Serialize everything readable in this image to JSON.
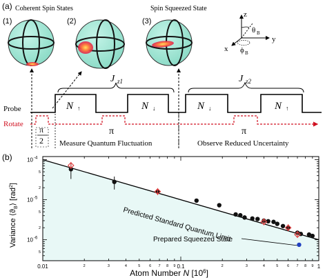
{
  "panel_a": {
    "label": "(a)",
    "sphere_labels": [
      "(1)",
      "(2)",
      "(3)"
    ],
    "coherent_title": "Coherent Spin States",
    "squeezed_title": "Spin Squeezed State",
    "axes": {
      "z": "z",
      "x": "x",
      "y": "y",
      "theta": "θ",
      "theta_sub": "B",
      "phi": "ϕ",
      "phi_sub": "B"
    },
    "jz1": {
      "main": "J",
      "sub": "z1"
    },
    "jz2": {
      "main": "J",
      "sub": "z2"
    },
    "probe_label": "Probe",
    "rotate_label": "Rotate",
    "pulse_labels": [
      "N",
      "N",
      "N",
      "N"
    ],
    "pi_half_num": "π",
    "pi_half_den": "2",
    "pi_labels": [
      "π",
      "π"
    ],
    "measure_text": "Measure Quantum Fluctuation",
    "observe_text": "Observe Reduced Uncertainty",
    "colors": {
      "probe": "#000000",
      "rotate": "#d01020",
      "sphere": "#a8e8d8"
    }
  },
  "panel_b": {
    "label": "(b)",
    "ylabel_main": "Variance ⟨ϑ",
    "ylabel_sub": "B",
    "ylabel_tail": "⟩ [rad",
    "ylabel_sup": "2",
    "ylabel_end": "]",
    "xlabel_main": "Atom Number ",
    "xlabel_var": "N",
    "xlabel_unit": " [10",
    "xlabel_sup": "6",
    "xlabel_end": "]",
    "sql_label": "Predicted Standard Quantum Limit",
    "squeezed_label": "Prepared Squeezed State",
    "y_tick_mantissa": "10",
    "y_tick_exps": [
      "-4",
      "-5",
      "-6"
    ],
    "x_tick_labels": [
      "0.01",
      "2",
      "3",
      "4",
      "5",
      "6",
      "7",
      "8",
      "9",
      "0.1",
      "2",
      "3",
      "4",
      "5",
      "6",
      "7",
      "8",
      "9",
      "1"
    ]
  },
  "chart_data": {
    "type": "scatter",
    "xscale": "log",
    "yscale": "log",
    "xlim": [
      0.01,
      1
    ],
    "ylim": [
      3e-07,
      0.00012
    ],
    "xlabel": "Atom Number N [10^6]",
    "ylabel": "Variance ⟨ϑB⟩ [rad^2]",
    "series": [
      {
        "name": "black",
        "color": "#111111",
        "x": [
          0.016,
          0.033,
          0.068,
          0.13,
          0.19,
          0.25,
          0.27,
          0.29,
          0.33,
          0.36,
          0.4,
          0.43,
          0.47,
          0.5,
          0.55,
          0.6,
          0.7,
          0.74,
          0.85,
          0.9
        ],
        "y": [
          5.8e-05,
          2.8e-05,
          1.6e-05,
          9.5e-06,
          7.3e-06,
          4.3e-06,
          4.1e-06,
          3.6e-06,
          3.4e-06,
          3.3e-06,
          3e-06,
          2.9e-06,
          2.8e-06,
          2.5e-06,
          2.2e-06,
          2e-06,
          1.5e-06,
          1.4e-06,
          1.35e-06,
          1.25e-06
        ],
        "yerr": [
          2.5e-05,
          1e-05,
          0,
          0,
          0,
          0,
          0,
          0,
          0,
          0,
          0,
          0,
          0,
          0,
          0,
          0,
          0,
          0,
          0,
          0
        ]
      },
      {
        "name": "red",
        "color": "#e04040",
        "x": [
          0.016,
          0.068,
          0.4,
          0.6,
          0.7
        ],
        "y": [
          7.2e-05,
          1.6e-05,
          2.8e-06,
          2e-06,
          1.35e-06
        ]
      },
      {
        "name": "blue",
        "color": "#2040c0",
        "x": [
          0.72
        ],
        "y": [
          7.5e-07
        ]
      }
    ],
    "sql_line": {
      "x": [
        0.01,
        1
      ],
      "y": [
        0.0001,
        1e-06
      ]
    },
    "grid": false
  }
}
